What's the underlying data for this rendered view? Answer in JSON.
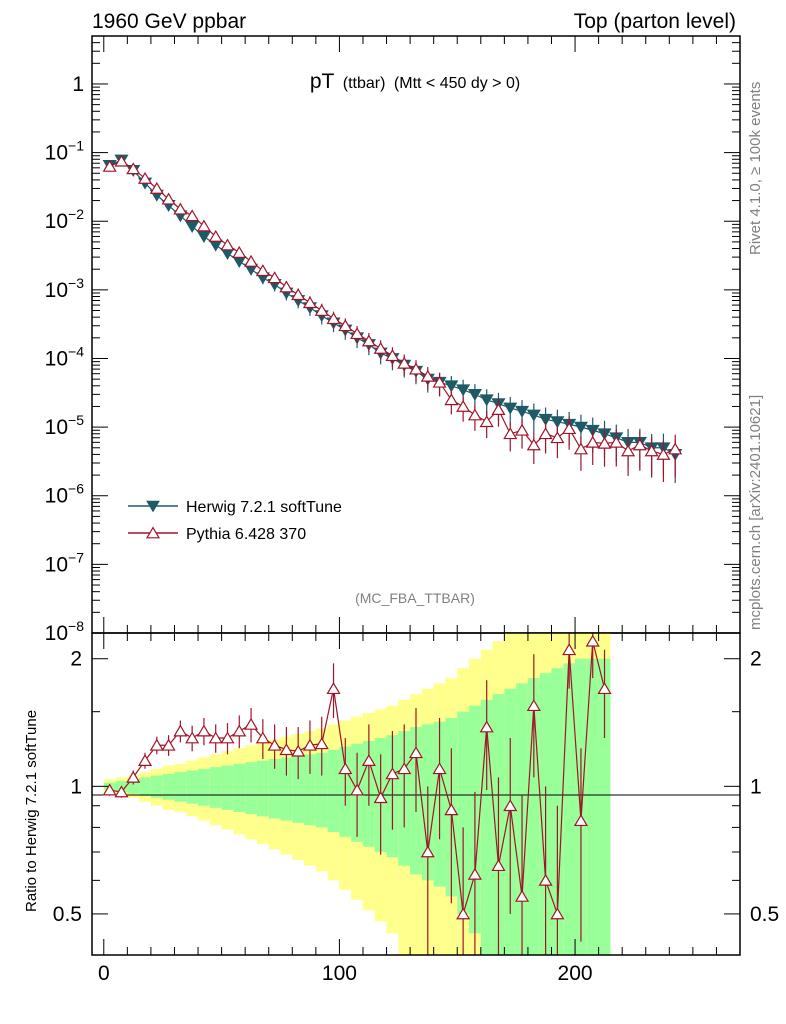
{
  "header": {
    "left": "1960 GeV ppbar",
    "right": "Top (parton level)"
  },
  "side_labels": {
    "rivet": "Rivet 4.1.0, ≥ 100k events",
    "mcplots": "mcplots.cern.ch [arXiv:2401.10621]"
  },
  "colors": {
    "herwig": "#1f5a66",
    "pythia": "#a0142a",
    "band_inner": "#99ff99",
    "band_outer": "#ffff8c"
  },
  "chart_data": [
    {
      "type": "line",
      "panel": "main",
      "title_main": "pT",
      "title_sub": "(ttbar)",
      "title_rest": "(Mtt < 450 dy > 0)",
      "watermark": "(MC_FBA_TTBAR)",
      "yscale": "log",
      "xlim": [
        -5,
        270
      ],
      "ylim": [
        1e-08,
        5
      ],
      "ytick_labels": [
        "1",
        "10",
        "10",
        "10",
        "10",
        "10",
        "10",
        "10",
        "10"
      ],
      "ytick_exps": [
        "",
        "−1",
        "−2",
        "−3",
        "−4",
        "−5",
        "−6",
        "−7",
        "−8"
      ],
      "legend": [
        "Herwig 7.2.1 softTune",
        "Pythia 6.428 370"
      ],
      "legend_position": "lower-left",
      "series": [
        {
          "name": "Herwig 7.2.1 softTune",
          "marker": "filled-down-triangle",
          "x": [
            2.5,
            7.5,
            12.5,
            17.5,
            22.5,
            27.5,
            32.5,
            37.5,
            42.5,
            47.5,
            52.5,
            57.5,
            62.5,
            67.5,
            72.5,
            77.5,
            82.5,
            87.5,
            92.5,
            97.5,
            102.5,
            107.5,
            112.5,
            117.5,
            122.5,
            127.5,
            132.5,
            137.5,
            142.5,
            147.5,
            152.5,
            157.5,
            162.5,
            167.5,
            172.5,
            177.5,
            182.5,
            187.5,
            192.5,
            197.5,
            202.5,
            207.5,
            212.5,
            217.5,
            222.5,
            227.5,
            232.5,
            237.5,
            242.5
          ],
          "y": [
            0.065,
            0.078,
            0.055,
            0.036,
            0.024,
            0.017,
            0.012,
            0.0084,
            0.006,
            0.0045,
            0.0034,
            0.0026,
            0.002,
            0.0015,
            0.0012,
            0.0009,
            0.0007,
            0.00055,
            0.00042,
            0.00033,
            0.00026,
            0.0002,
            0.00016,
            0.00012,
            0.0001,
            8e-05,
            6.5e-05,
            5e-05,
            4.5e-05,
            4e-05,
            3.5e-05,
            3e-05,
            2.5e-05,
            2.2e-05,
            1.9e-05,
            1.7e-05,
            1.5e-05,
            1.3e-05,
            1.2e-05,
            1.1e-05,
            1e-05,
            9e-06,
            8e-06,
            7e-06,
            6e-06,
            6e-06,
            5e-06,
            5e-06,
            4e-06
          ]
        },
        {
          "name": "Pythia 6.428 370",
          "marker": "open-up-triangle",
          "x": [
            2.5,
            7.5,
            12.5,
            17.5,
            22.5,
            27.5,
            32.5,
            37.5,
            42.5,
            47.5,
            52.5,
            57.5,
            62.5,
            67.5,
            72.5,
            77.5,
            82.5,
            87.5,
            92.5,
            97.5,
            102.5,
            107.5,
            112.5,
            117.5,
            122.5,
            127.5,
            132.5,
            137.5,
            142.5,
            147.5,
            152.5,
            157.5,
            162.5,
            167.5,
            172.5,
            177.5,
            182.5,
            187.5,
            192.5,
            197.5,
            202.5,
            207.5,
            212.5,
            217.5,
            222.5,
            227.5,
            232.5,
            237.5,
            242.5
          ],
          "y": [
            0.063,
            0.075,
            0.058,
            0.042,
            0.03,
            0.021,
            0.015,
            0.012,
            0.0085,
            0.006,
            0.0045,
            0.0035,
            0.0026,
            0.0019,
            0.0015,
            0.0011,
            0.00085,
            0.00065,
            0.0005,
            0.00038,
            0.0003,
            0.00023,
            0.00018,
            0.00014,
            0.00011,
            8.5e-05,
            7e-05,
            5.5e-05,
            4.5e-05,
            2.5e-05,
            2e-05,
            1.5e-05,
            1.2e-05,
            1.8e-05,
            8e-06,
            9e-06,
            5.5e-06,
            8e-06,
            7e-06,
            9.5e-06,
            4.8e-06,
            6e-06,
            5.8e-06,
            6e-06,
            4.5e-06,
            5.5e-06,
            4.5e-06,
            4e-06,
            4.8e-06
          ]
        }
      ]
    },
    {
      "type": "line",
      "panel": "ratio",
      "ylabel": "Ratio to Herwig 7.2.1 softTune",
      "yscale": "log",
      "xlim": [
        -5,
        270
      ],
      "ylim": [
        0.4,
        2.3
      ],
      "xticks": [
        0,
        100,
        200
      ],
      "xtick_labels": [
        "0",
        "100",
        "200"
      ],
      "yticks": [
        0.5,
        1,
        2
      ],
      "ytick_labels": [
        "0.5",
        "1",
        "2"
      ],
      "series": [
        {
          "name": "Pythia 6.428 370 / Herwig 7.2.1 softTune",
          "x": [
            2.5,
            7.5,
            12.5,
            17.5,
            22.5,
            27.5,
            32.5,
            37.5,
            42.5,
            47.5,
            52.5,
            57.5,
            62.5,
            67.5,
            72.5,
            77.5,
            82.5,
            87.5,
            92.5,
            97.5,
            102.5,
            107.5,
            112.5,
            117.5,
            122.5,
            127.5,
            132.5,
            137.5,
            142.5,
            147.5,
            152.5,
            157.5,
            162.5,
            167.5,
            172.5,
            177.5,
            182.5,
            187.5,
            192.5,
            197.5,
            202.5,
            207.5,
            212.5
          ],
          "y": [
            0.98,
            0.97,
            1.05,
            1.15,
            1.25,
            1.25,
            1.35,
            1.3,
            1.35,
            1.3,
            1.3,
            1.35,
            1.4,
            1.3,
            1.25,
            1.22,
            1.21,
            1.25,
            1.26,
            1.7,
            1.1,
            0.98,
            1.15,
            0.94,
            1.07,
            1.1,
            1.2,
            0.7,
            1.1,
            0.88,
            0.5,
            0.62,
            1.38,
            0.65,
            0.9,
            0.55,
            1.55,
            0.6,
            0.5,
            2.1,
            0.83,
            2.2,
            1.7
          ],
          "yerr": [
            0.03,
            0.03,
            0.04,
            0.05,
            0.06,
            0.07,
            0.08,
            0.09,
            0.1,
            0.1,
            0.11,
            0.12,
            0.13,
            0.14,
            0.15,
            0.16,
            0.17,
            0.18,
            0.2,
            0.25,
            0.2,
            0.22,
            0.25,
            0.25,
            0.28,
            0.3,
            0.33,
            0.3,
            0.35,
            0.35,
            0.3,
            0.35,
            0.4,
            0.4,
            0.4,
            0.4,
            0.5,
            0.4,
            0.4,
            0.4,
            0.4,
            0.4,
            0.4
          ]
        }
      ],
      "band_inner_halfwidth": [
        0.02,
        0.03,
        0.04,
        0.05,
        0.06,
        0.07,
        0.08,
        0.09,
        0.1,
        0.11,
        0.12,
        0.13,
        0.14,
        0.15,
        0.16,
        0.17,
        0.18,
        0.19,
        0.2,
        0.22,
        0.24,
        0.26,
        0.28,
        0.3,
        0.32,
        0.35,
        0.38,
        0.4,
        0.42,
        0.45,
        0.5,
        0.55,
        0.6,
        0.65,
        0.7,
        0.75,
        0.8,
        0.85,
        0.9,
        0.95,
        1.0,
        1.0,
        1.0
      ],
      "band_outer_halfwidth": [
        0.04,
        0.05,
        0.06,
        0.08,
        0.1,
        0.12,
        0.13,
        0.15,
        0.17,
        0.19,
        0.21,
        0.23,
        0.25,
        0.27,
        0.29,
        0.31,
        0.33,
        0.35,
        0.37,
        0.4,
        0.43,
        0.46,
        0.49,
        0.52,
        0.55,
        0.6,
        0.65,
        0.7,
        0.75,
        0.8,
        0.9,
        1.0,
        1.1,
        1.2,
        1.3,
        1.4,
        1.5,
        1.6,
        1.7,
        1.8,
        1.9,
        2.0,
        2.0
      ]
    }
  ]
}
